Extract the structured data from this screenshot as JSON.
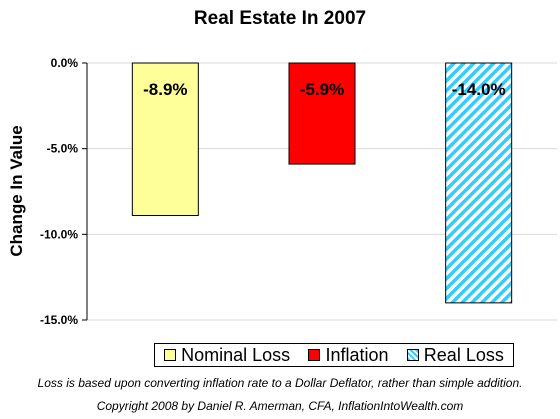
{
  "chart_data": {
    "type": "bar",
    "title": "Real Estate In 2007",
    "xlabel": "",
    "ylabel": "Change In Value",
    "categories": [
      "Nominal Loss",
      "Inflation",
      "Real Loss"
    ],
    "values": [
      -8.9,
      -5.9,
      -14.0
    ],
    "data_labels": [
      "-8.9%",
      "-5.9%",
      "-14.0%"
    ],
    "colors": [
      "#ffff99",
      "#ff0000",
      "#33ccff"
    ],
    "patterns": [
      "solid",
      "solid",
      "diagonal-stripes"
    ],
    "ylim": [
      -15.0,
      0.0
    ],
    "yticks": [
      0.0,
      -5.0,
      -10.0,
      -15.0
    ],
    "ytick_labels": [
      "0.0%",
      "-5.0%",
      "-10.0%",
      "-15.0%"
    ],
    "grid": true,
    "legend_position": "bottom-right",
    "legend": [
      "Nominal Loss",
      "Inflation",
      "Real Loss"
    ]
  },
  "footnotes": {
    "method": "Loss is based upon converting inflation rate to a Dollar Deflator, rather than simple addition.",
    "copyright": "Copyright 2008 by Daniel R. Amerman, CFA, InflationIntoWealth.com"
  }
}
